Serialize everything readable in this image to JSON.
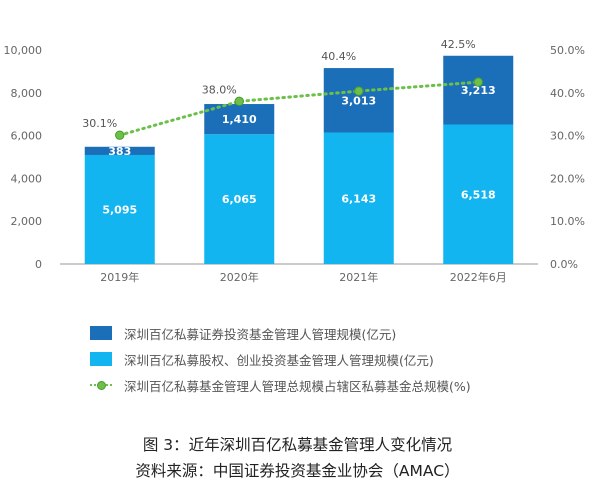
{
  "chart_data": {
    "type": "bar",
    "categories": [
      "2019年",
      "2020年",
      "2021年",
      "2022年6月"
    ],
    "series": [
      {
        "name": "深圳百亿私募股权、创业投资基金管理人管理规模(亿元)",
        "values": [
          5095,
          6065,
          6143,
          6518
        ],
        "color": "#12b5f0",
        "axis": "left"
      },
      {
        "name": "深圳百亿私募证券投资基金管理人管理规模(亿元)",
        "values": [
          383,
          1410,
          3013,
          3213
        ],
        "color": "#1b6fb8",
        "axis": "left"
      },
      {
        "name": "深圳百亿私募基金管理人管理总规模占辖区私募基金总规模(%)",
        "values": [
          30.1,
          38.0,
          40.4,
          42.5
        ],
        "color": "#6cc04a",
        "type": "line",
        "axis": "right"
      }
    ],
    "y_left": {
      "range": [
        0,
        10000
      ],
      "ticks": [
        "0",
        "2,000",
        "4,000",
        "6,000",
        "8,000",
        "10,000"
      ]
    },
    "y_right": {
      "range": [
        0,
        50
      ],
      "ticks": [
        "0.0%",
        "10.0%",
        "20.0%",
        "30.0%",
        "40.0%",
        "50.0%"
      ]
    },
    "bar_labels": {
      "equity": [
        "5,095",
        "6,065",
        "6,143",
        "6,518"
      ],
      "securities": [
        "383",
        "1,410",
        "3,013",
        "3,213"
      ],
      "share": [
        "30.1%",
        "38.0%",
        "40.4%",
        "42.5%"
      ]
    },
    "grid": false,
    "legend_position": "bottom"
  },
  "legend": {
    "items": [
      {
        "label": "深圳百亿私募证券投资基金管理人管理规模(亿元)"
      },
      {
        "label": "深圳百亿私募股权、创业投资基金管理人管理规模(亿元)"
      },
      {
        "label": "深圳百亿私募基金管理人管理总规模占辖区私募基金总规模(%)"
      }
    ]
  },
  "caption": {
    "title": "图 3：近年深圳百亿私募基金管理人变化情况",
    "source": "资料来源：中国证券投资基金业协会（AMAC）"
  }
}
